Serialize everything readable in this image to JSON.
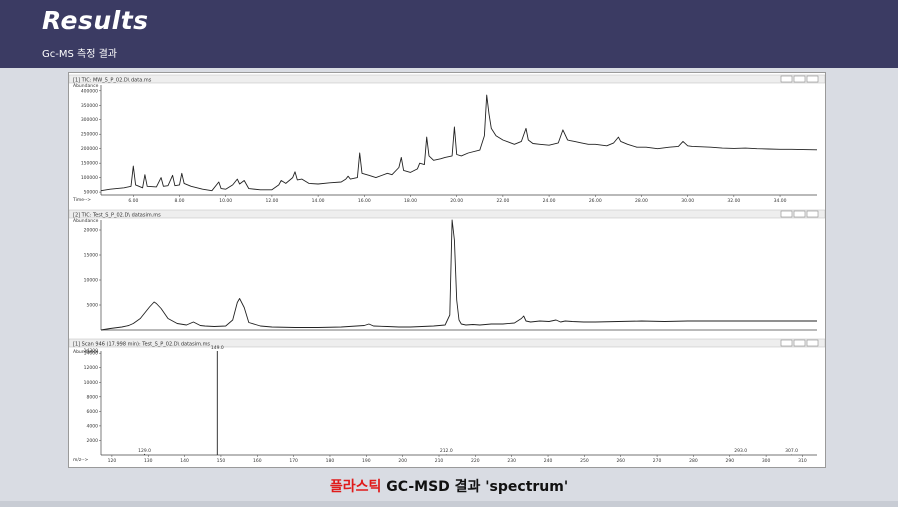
{
  "header": {
    "title": "Results",
    "subtitle": "Gc-MS 측정 결과"
  },
  "caption": {
    "highlight": "플라스틱",
    "rest": " GC-MSD 결과 'spectrum'"
  },
  "colors": {
    "header_bg": "#3b3b63",
    "content_bg": "#d9dce3",
    "caption_highlight": "#e01b1b",
    "trace": "#222222"
  },
  "chart_data": [
    {
      "type": "line",
      "panel_title": "[1] TIC: MW_5_P_02.D\\ data.ms",
      "ylabel": "Abundance",
      "xlabel": "Time-->",
      "x_ticks": [
        "6.00",
        "8.00",
        "10.00",
        "12.00",
        "14.00",
        "16.00",
        "18.00",
        "20.00",
        "22.00",
        "24.00",
        "26.00",
        "28.00",
        "30.00",
        "32.00",
        "34.00"
      ],
      "y_ticks": [
        "50000",
        "100000",
        "150000",
        "200000",
        "250000",
        "300000",
        "350000",
        "400000"
      ],
      "xlim": [
        4.6,
        35.6
      ],
      "ylim": [
        40000,
        420000
      ],
      "series": [
        {
          "x": [
            4.6,
            5.0,
            5.6,
            5.9,
            6.0,
            6.1,
            6.4,
            6.5,
            6.6,
            7.0,
            7.2,
            7.3,
            7.5,
            7.7,
            7.8,
            8.0,
            8.1,
            8.2,
            8.5,
            9.0,
            9.4,
            9.7,
            9.8,
            10.0,
            10.3,
            10.5,
            10.6,
            10.8,
            11.0,
            11.5,
            12.0,
            12.3,
            12.4,
            12.6,
            12.9,
            13.0,
            13.1,
            13.3,
            13.6,
            14.0,
            14.5,
            15.0,
            15.2,
            15.3,
            15.4,
            15.7,
            15.8,
            15.9,
            16.2,
            16.5,
            17.0,
            17.2,
            17.5,
            17.6,
            17.7,
            18.0,
            18.3,
            18.4,
            18.6,
            18.7,
            18.8,
            19.0,
            19.3,
            19.5,
            19.8,
            19.9,
            20.0,
            20.2,
            20.5,
            21.0,
            21.2,
            21.3,
            21.4,
            21.5,
            21.7,
            22.0,
            22.5,
            22.8,
            23.0,
            23.1,
            23.3,
            23.6,
            24.0,
            24.4,
            24.6,
            24.8,
            24.9,
            25.1,
            25.4,
            25.7,
            26.0,
            26.5,
            26.8,
            27.0,
            27.1,
            27.4,
            27.8,
            28.2,
            28.7,
            29.2,
            29.6,
            29.8,
            30.0,
            30.2,
            30.5,
            31.0,
            31.5,
            32.0,
            32.5,
            33.0,
            33.5,
            34.0,
            34.5,
            35.0,
            35.6
          ],
          "y": [
            55000,
            60000,
            65000,
            70000,
            140000,
            75000,
            65000,
            110000,
            70000,
            68000,
            100000,
            70000,
            72000,
            108000,
            72000,
            75000,
            115000,
            80000,
            70000,
            60000,
            55000,
            85000,
            62000,
            60000,
            75000,
            95000,
            78000,
            90000,
            62000,
            58000,
            58000,
            75000,
            90000,
            80000,
            100000,
            120000,
            92000,
            95000,
            80000,
            78000,
            82000,
            85000,
            95000,
            105000,
            95000,
            100000,
            185000,
            115000,
            108000,
            100000,
            115000,
            110000,
            135000,
            170000,
            125000,
            118000,
            130000,
            150000,
            145000,
            240000,
            175000,
            160000,
            165000,
            170000,
            175000,
            275000,
            180000,
            175000,
            185000,
            195000,
            245000,
            385000,
            320000,
            270000,
            245000,
            230000,
            215000,
            225000,
            270000,
            230000,
            218000,
            215000,
            212000,
            220000,
            265000,
            230000,
            228000,
            225000,
            220000,
            215000,
            215000,
            210000,
            220000,
            240000,
            225000,
            215000,
            205000,
            205000,
            200000,
            205000,
            208000,
            225000,
            210000,
            208000,
            207000,
            205000,
            202000,
            201000,
            202000,
            200000,
            199000,
            198000,
            198000,
            197000,
            196000
          ]
        }
      ]
    },
    {
      "type": "line",
      "panel_title": "[2] TIC: Test_S_P_02.D\\ datasim.ms",
      "ylabel": "Abundance",
      "x_ticks": [],
      "y_ticks": [
        "5000",
        "10000",
        "15000",
        "20000"
      ],
      "xlim": [
        4.6,
        35.6
      ],
      "ylim": [
        0,
        22000
      ],
      "series": [
        {
          "x": [
            4.6,
            5.0,
            5.5,
            5.8,
            6.0,
            6.3,
            6.7,
            6.9,
            7.0,
            7.2,
            7.5,
            7.9,
            8.3,
            8.6,
            8.9,
            9.1,
            9.5,
            10.0,
            10.3,
            10.5,
            10.6,
            10.8,
            11.0,
            11.5,
            12.0,
            13.0,
            14.0,
            15.0,
            16.0,
            16.2,
            16.4,
            17.0,
            17.5,
            18.0,
            18.5,
            19.0,
            19.5,
            19.7,
            19.8,
            19.9,
            20.0,
            20.1,
            20.2,
            20.4,
            20.7,
            21.0,
            21.5,
            22.0,
            22.5,
            22.8,
            22.9,
            23.0,
            23.2,
            23.6,
            24.0,
            24.3,
            24.5,
            24.7,
            25.0,
            25.5,
            26.0,
            27.0,
            28.0,
            29.0,
            30.0,
            31.0,
            32.0,
            33.0,
            34.0,
            35.0,
            35.6
          ],
          "y": [
            0,
            300,
            600,
            900,
            1300,
            2300,
            4600,
            5600,
            5300,
            4300,
            2300,
            1300,
            1000,
            1600,
            900,
            800,
            700,
            800,
            2000,
            5500,
            6300,
            4500,
            1500,
            800,
            600,
            500,
            500,
            600,
            900,
            1200,
            800,
            700,
            600,
            600,
            700,
            800,
            1000,
            3000,
            22000,
            18000,
            6000,
            2000,
            1200,
            1000,
            1100,
            1000,
            1200,
            1200,
            1400,
            2300,
            2800,
            1800,
            1600,
            1800,
            1700,
            2000,
            1600,
            1800,
            1700,
            1600,
            1600,
            1700,
            1800,
            1700,
            1800,
            1800,
            1800,
            1800,
            1800,
            1800,
            1800
          ]
        }
      ]
    },
    {
      "type": "bar",
      "panel_title": "[1] Scan 946 (17.998 min): Test_S_P_02.D\\ datasim.ms",
      "ylabel": "Abundance",
      "xlabel": "m/z-->",
      "x_ticks": [
        "120",
        "130",
        "140",
        "150",
        "160",
        "170",
        "180",
        "190",
        "200",
        "210",
        "220",
        "230",
        "240",
        "250",
        "260",
        "270",
        "280",
        "290",
        "300",
        "310"
      ],
      "y_ticks": [
        "2000",
        "4000",
        "6000",
        "8000",
        "10000",
        "12000",
        "14000"
      ],
      "y_top_label": "14300",
      "xlim": [
        117,
        314
      ],
      "ylim": [
        0,
        14300
      ],
      "peaks": [
        {
          "mz": 129.0,
          "value": 150
        },
        {
          "mz": 149.0,
          "value": 14300
        },
        {
          "mz": 212.0,
          "value": 60
        },
        {
          "mz": 293.0,
          "value": 60
        },
        {
          "mz": 307.0,
          "value": 60
        }
      ],
      "peak_labels": [
        {
          "mz": 129.0,
          "label": "129.0"
        },
        {
          "mz": 149.0,
          "label": "149.0"
        },
        {
          "mz": 212.0,
          "label": "212.0"
        },
        {
          "mz": 293.0,
          "label": "293.0"
        },
        {
          "mz": 307.0,
          "label": "307.0"
        }
      ]
    }
  ]
}
